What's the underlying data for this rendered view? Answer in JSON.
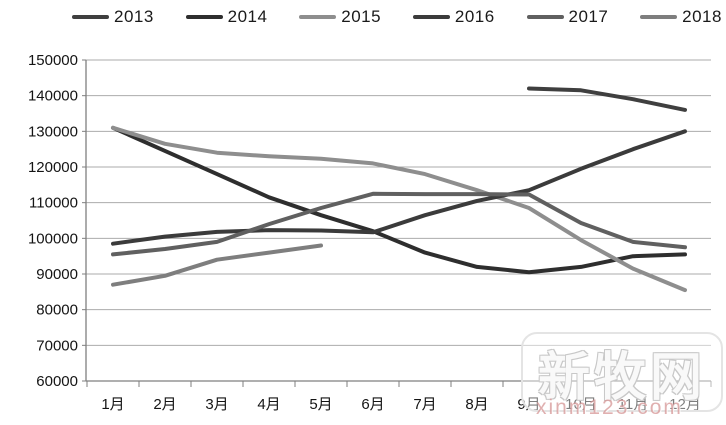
{
  "chart_data": {
    "type": "line",
    "title": "",
    "xlabel": "",
    "ylabel": "",
    "x_labels": [
      "1月",
      "2月",
      "3月",
      "4月",
      "5月",
      "6月",
      "7月",
      "8月",
      "9月",
      "10月",
      "11月",
      "12月"
    ],
    "y_tick_labels": [
      "150000",
      "140000",
      "130000",
      "120000",
      "110000",
      "100000",
      "90000",
      "80000",
      "70000",
      "60000"
    ],
    "ylim": [
      60000,
      150000
    ],
    "y_step": 10000,
    "grid": true,
    "legend_position": "top",
    "series": [
      {
        "name": "2013",
        "color": "#3f3f3f",
        "values": [
          null,
          null,
          null,
          null,
          null,
          null,
          null,
          null,
          142000,
          141500,
          139000,
          136000
        ]
      },
      {
        "name": "2014",
        "color": "#2e2e2e",
        "values": [
          131000,
          124500,
          118000,
          111500,
          106500,
          102000,
          96000,
          92000,
          90500,
          92000,
          95000,
          95500
        ]
      },
      {
        "name": "2015",
        "color": "#8e8e8e",
        "values": [
          131000,
          126500,
          124000,
          123000,
          122300,
          121000,
          118000,
          113500,
          108500,
          99500,
          91500,
          85500
        ]
      },
      {
        "name": "2016",
        "color": "#3b3b3b",
        "values": [
          98500,
          100500,
          101800,
          102300,
          102200,
          101700,
          106500,
          110500,
          113500,
          119500,
          125000,
          130000
        ]
      },
      {
        "name": "2017",
        "color": "#606060",
        "values": [
          95500,
          97000,
          99000,
          104000,
          108500,
          112500,
          112400,
          112400,
          112300,
          104300,
          99000,
          97500
        ]
      },
      {
        "name": "2018",
        "color": "#7e7e7e",
        "values": [
          87000,
          89500,
          94000,
          96000,
          98000,
          null,
          null,
          null,
          null,
          null,
          null,
          null
        ]
      }
    ]
  },
  "watermark": {
    "title": "新牧网",
    "url_text": "xinm123.com"
  }
}
